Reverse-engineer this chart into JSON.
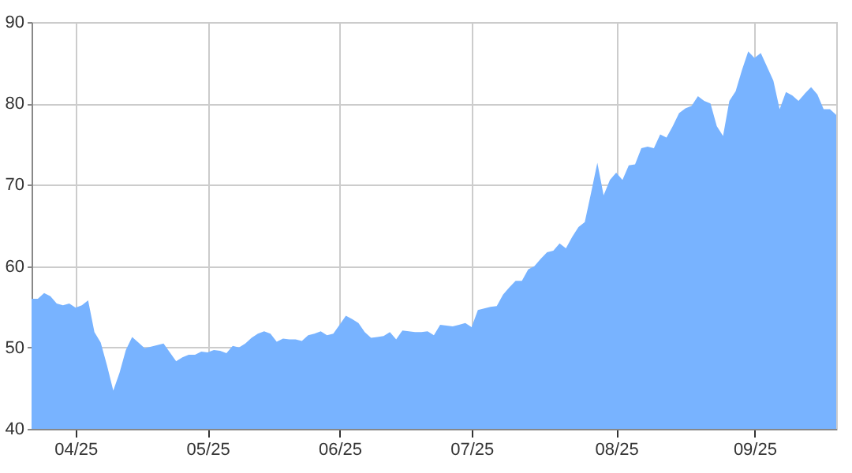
{
  "chart_data": {
    "type": "area",
    "categories": [
      null,
      null,
      null,
      null,
      null,
      null,
      null,
      "04/25",
      null,
      null,
      null,
      null,
      null,
      null,
      null,
      null,
      null,
      null,
      null,
      null,
      null,
      null,
      null,
      null,
      null,
      null,
      null,
      null,
      "05/25",
      null,
      null,
      null,
      null,
      null,
      null,
      null,
      null,
      null,
      null,
      null,
      null,
      null,
      null,
      null,
      null,
      null,
      null,
      null,
      null,
      "06/25",
      null,
      null,
      null,
      null,
      null,
      null,
      null,
      null,
      null,
      null,
      null,
      null,
      null,
      null,
      null,
      null,
      null,
      null,
      null,
      null,
      "07/25",
      null,
      null,
      null,
      null,
      null,
      null,
      null,
      null,
      null,
      null,
      null,
      null,
      null,
      null,
      null,
      null,
      null,
      null,
      null,
      null,
      null,
      null,
      "08/25",
      null,
      null,
      null,
      null,
      null,
      null,
      null,
      null,
      null,
      null,
      null,
      null,
      null,
      null,
      null,
      null,
      null,
      null,
      null,
      null,
      null,
      "09/25",
      null,
      null,
      null,
      null,
      null,
      null,
      null,
      null,
      null,
      null,
      null,
      null,
      null
    ],
    "series": [
      {
        "color": "#78b3ff",
        "values": [
          56.0,
          56.0,
          56.7,
          56.3,
          55.4,
          55.2,
          55.4,
          54.9,
          55.2,
          55.8,
          51.9,
          50.6,
          47.8,
          44.7,
          46.9,
          49.7,
          51.3,
          50.6,
          49.9,
          50.1,
          50.3,
          50.5,
          49.4,
          48.3,
          48.8,
          49.1,
          49.1,
          49.5,
          49.4,
          49.7,
          49.6,
          49.3,
          50.2,
          50.0,
          50.5,
          51.2,
          51.7,
          52.0,
          51.7,
          50.7,
          51.1,
          51.0,
          51.0,
          50.8,
          51.5,
          51.7,
          52.0,
          51.5,
          51.7,
          52.8,
          53.9,
          53.5,
          53.0,
          51.9,
          51.2,
          51.3,
          51.4,
          51.9,
          51.0,
          52.1,
          52.0,
          51.9,
          51.9,
          52.0,
          51.5,
          52.8,
          52.7,
          52.6,
          52.8,
          53.0,
          52.5,
          54.6,
          54.8,
          55.0,
          55.1,
          56.5,
          57.4,
          58.2,
          58.2,
          59.6,
          60.0,
          60.9,
          61.7,
          61.9,
          62.8,
          62.2,
          63.6,
          64.8,
          65.4,
          69.0,
          72.7,
          68.7,
          70.6,
          71.5,
          70.6,
          72.4,
          72.5,
          74.5,
          74.7,
          74.5,
          76.2,
          75.8,
          77.2,
          78.8,
          79.4,
          79.7,
          80.9,
          80.3,
          80.0,
          77.2,
          76.0,
          80.3,
          81.5,
          84.1,
          86.4,
          85.6,
          86.2,
          84.5,
          82.8,
          79.3,
          81.4,
          81.0,
          80.3,
          81.2,
          82.0,
          81.1,
          79.3,
          79.3,
          78.6
        ]
      }
    ],
    "ylim": [
      40,
      90
    ],
    "yticks": [
      40,
      50,
      60,
      70,
      80,
      90
    ],
    "grid": true
  }
}
